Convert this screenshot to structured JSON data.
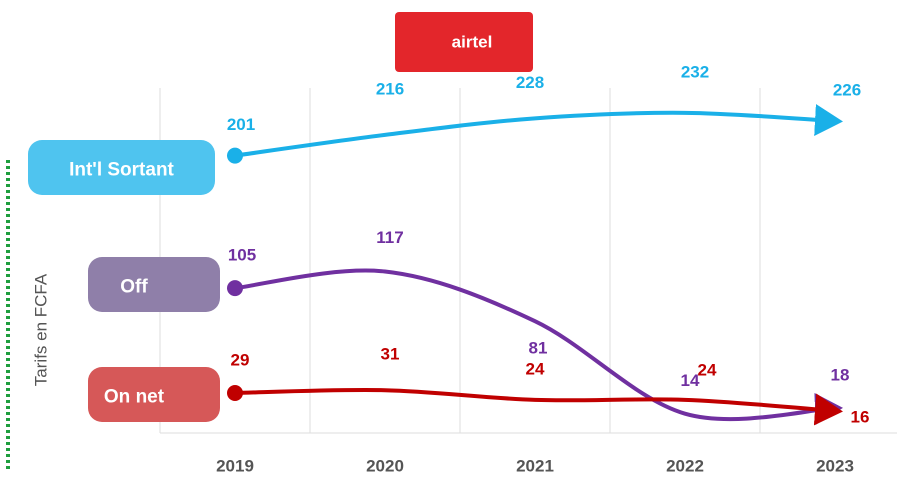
{
  "chart_data": {
    "type": "line",
    "logo": "airtel",
    "y_label": "Tarifs en FCFA",
    "categories": [
      "2019",
      "2020",
      "2021",
      "2022",
      "2023"
    ],
    "ylim": [
      0,
      250
    ],
    "series": [
      {
        "name": "Int'l Sortant",
        "color": "#1ab0e8",
        "box_color": "#4fc4ef",
        "values": [
          201,
          216,
          228,
          232,
          226
        ]
      },
      {
        "name": "Off",
        "color": "#7030a0",
        "box_color": "#8f7fa9",
        "values": [
          105,
          117,
          81,
          14,
          18
        ]
      },
      {
        "name": "On net",
        "color": "#c00000",
        "box_color": "#d65858",
        "values": [
          29,
          31,
          24,
          24,
          16
        ]
      }
    ]
  }
}
